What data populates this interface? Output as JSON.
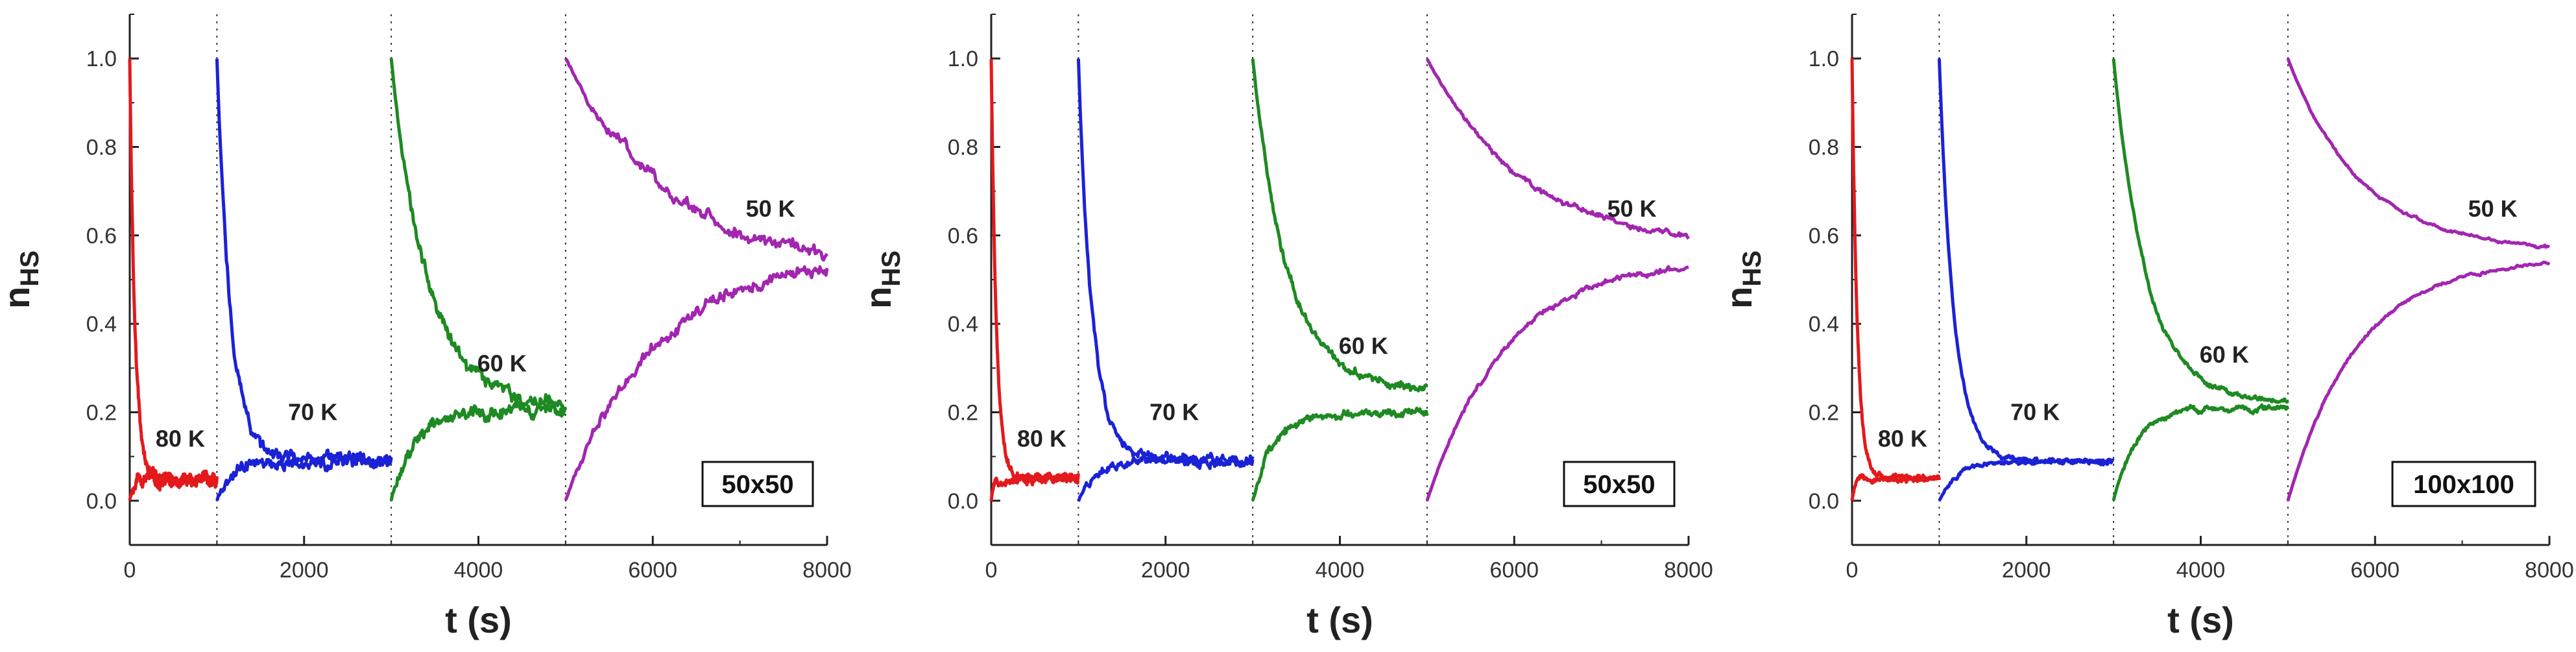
{
  "chart_data": [
    {
      "type": "line",
      "panel_label": "50x50",
      "xlabel": "t (s)",
      "ylabel_main": "n",
      "ylabel_sub": "HS",
      "xlim": [
        0,
        8000
      ],
      "ylim": [
        -0.1,
        1.1
      ],
      "xticks": [
        "0",
        "2000",
        "4000",
        "6000",
        "8000"
      ],
      "yticks": [
        "0.0",
        "0.2",
        "0.4",
        "0.6",
        "0.8",
        "1.0"
      ],
      "xtick_values": [
        0,
        2000,
        4000,
        6000,
        8000
      ],
      "ytick_values": [
        0,
        0.2,
        0.4,
        0.6,
        0.8,
        1.0
      ],
      "vlines": [
        1000,
        3000,
        5000
      ],
      "series": [
        {
          "name": "80 K",
          "color": "#e3191c",
          "start": 0,
          "end": 1000,
          "from": 1.0,
          "to": 0.05,
          "tau": 60,
          "noise": 0.012,
          "label_pos": [
            580,
            0.14
          ]
        },
        {
          "name": "80 K up",
          "color": "#e3191c",
          "start": 0,
          "end": 1000,
          "from": 0.0,
          "to": 0.05,
          "tau": 30,
          "noise": 0.012
        },
        {
          "name": "70 K",
          "color": "#1b22d6",
          "start": 1000,
          "end": 3000,
          "from": 1.0,
          "to": 0.09,
          "tau": 160,
          "noise": 0.013,
          "label_pos": [
            2100,
            0.2
          ]
        },
        {
          "name": "70 K up",
          "color": "#1b22d6",
          "start": 1000,
          "end": 3000,
          "from": 0.0,
          "to": 0.09,
          "tau": 180,
          "noise": 0.013
        },
        {
          "name": "60 K",
          "color": "#1e8a22",
          "start": 3000,
          "end": 5000,
          "from": 1.0,
          "to": 0.21,
          "tau": 420,
          "noise": 0.014,
          "label_pos": [
            4270,
            0.31
          ]
        },
        {
          "name": "60 K up",
          "color": "#1e8a22",
          "start": 3000,
          "end": 5000,
          "from": 0.0,
          "to": 0.2,
          "tau": 230,
          "noise": 0.014
        },
        {
          "name": "50 K",
          "color": "#a226b0",
          "start": 5000,
          "end": 8000,
          "from": 1.0,
          "to": 0.5,
          "tau": 1300,
          "noise": 0.013,
          "label_pos": [
            7350,
            0.66
          ]
        },
        {
          "name": "50 K up",
          "color": "#a226b0",
          "start": 5000,
          "end": 8000,
          "from": 0.0,
          "to": 0.55,
          "tau": 1000,
          "noise": 0.013
        }
      ]
    },
    {
      "type": "line",
      "panel_label": "50x50",
      "xlabel": "t (s)",
      "ylabel_main": "n",
      "ylabel_sub": "HS",
      "xlim": [
        0,
        8000
      ],
      "ylim": [
        -0.1,
        1.1
      ],
      "xticks": [
        "0",
        "2000",
        "4000",
        "6000",
        "8000"
      ],
      "yticks": [
        "0.0",
        "0.2",
        "0.4",
        "0.6",
        "0.8",
        "1.0"
      ],
      "xtick_values": [
        0,
        2000,
        4000,
        6000,
        8000
      ],
      "ytick_values": [
        0,
        0.2,
        0.4,
        0.6,
        0.8,
        1.0
      ],
      "vlines": [
        1000,
        3000,
        5000
      ],
      "series": [
        {
          "name": "80 K",
          "color": "#e3191c",
          "start": 0,
          "end": 1000,
          "from": 1.0,
          "to": 0.05,
          "tau": 60,
          "noise": 0.008,
          "label_pos": [
            580,
            0.14
          ]
        },
        {
          "name": "80 K up",
          "color": "#e3191c",
          "start": 0,
          "end": 1000,
          "from": 0.0,
          "to": 0.05,
          "tau": 30,
          "noise": 0.008
        },
        {
          "name": "70 K",
          "color": "#1b22d6",
          "start": 1000,
          "end": 3000,
          "from": 1.0,
          "to": 0.09,
          "tau": 160,
          "noise": 0.009,
          "label_pos": [
            2100,
            0.2
          ]
        },
        {
          "name": "70 K up",
          "color": "#1b22d6",
          "start": 1000,
          "end": 3000,
          "from": 0.0,
          "to": 0.09,
          "tau": 200,
          "noise": 0.009
        },
        {
          "name": "60 K",
          "color": "#1e8a22",
          "start": 3000,
          "end": 5000,
          "from": 1.0,
          "to": 0.25,
          "tau": 400,
          "noise": 0.008,
          "label_pos": [
            4270,
            0.35
          ]
        },
        {
          "name": "60 K up",
          "color": "#1e8a22",
          "start": 3000,
          "end": 5000,
          "from": 0.0,
          "to": 0.2,
          "tau": 250,
          "noise": 0.008
        },
        {
          "name": "50 K",
          "color": "#a226b0",
          "start": 5000,
          "end": 8000,
          "from": 1.0,
          "to": 0.57,
          "tau": 1100,
          "noise": 0.006,
          "label_pos": [
            7350,
            0.66
          ]
        },
        {
          "name": "50 K up",
          "color": "#a226b0",
          "start": 5000,
          "end": 8000,
          "from": 0.0,
          "to": 0.55,
          "tau": 900,
          "noise": 0.006
        }
      ]
    },
    {
      "type": "line",
      "panel_label": "100x100",
      "xlabel": "t (s)",
      "ylabel_main": "n",
      "ylabel_sub": "HS",
      "xlim": [
        0,
        8000
      ],
      "ylim": [
        -0.1,
        1.1
      ],
      "xticks": [
        "0",
        "2000",
        "4000",
        "6000",
        "8000"
      ],
      "yticks": [
        "0.0",
        "0.2",
        "0.4",
        "0.6",
        "0.8",
        "1.0"
      ],
      "xtick_values": [
        0,
        2000,
        4000,
        6000,
        8000
      ],
      "ytick_values": [
        0,
        0.2,
        0.4,
        0.6,
        0.8,
        1.0
      ],
      "vlines": [
        1000,
        3000,
        5000
      ],
      "series": [
        {
          "name": "80 K",
          "color": "#e3191c",
          "start": 0,
          "end": 1000,
          "from": 1.0,
          "to": 0.05,
          "tau": 60,
          "noise": 0.005,
          "label_pos": [
            580,
            0.14
          ]
        },
        {
          "name": "80 K up",
          "color": "#e3191c",
          "start": 0,
          "end": 1000,
          "from": 0.0,
          "to": 0.05,
          "tau": 30,
          "noise": 0.005
        },
        {
          "name": "70 K",
          "color": "#1b22d6",
          "start": 1000,
          "end": 3000,
          "from": 1.0,
          "to": 0.09,
          "tau": 170,
          "noise": 0.005,
          "label_pos": [
            2100,
            0.2
          ]
        },
        {
          "name": "70 K up",
          "color": "#1b22d6",
          "start": 1000,
          "end": 3000,
          "from": 0.0,
          "to": 0.09,
          "tau": 220,
          "noise": 0.005
        },
        {
          "name": "60 K",
          "color": "#1e8a22",
          "start": 3000,
          "end": 5000,
          "from": 1.0,
          "to": 0.22,
          "tau": 380,
          "noise": 0.005,
          "label_pos": [
            4270,
            0.33
          ]
        },
        {
          "name": "60 K up",
          "color": "#1e8a22",
          "start": 3000,
          "end": 5000,
          "from": 0.0,
          "to": 0.21,
          "tau": 260,
          "noise": 0.005
        },
        {
          "name": "50 K",
          "color": "#a226b0",
          "start": 5000,
          "end": 8000,
          "from": 1.0,
          "to": 0.56,
          "tau": 850,
          "noise": 0.003,
          "label_pos": [
            7350,
            0.66
          ]
        },
        {
          "name": "50 K up",
          "color": "#a226b0",
          "start": 5000,
          "end": 8000,
          "from": 0.0,
          "to": 0.55,
          "tau": 800,
          "noise": 0.003
        }
      ]
    }
  ]
}
